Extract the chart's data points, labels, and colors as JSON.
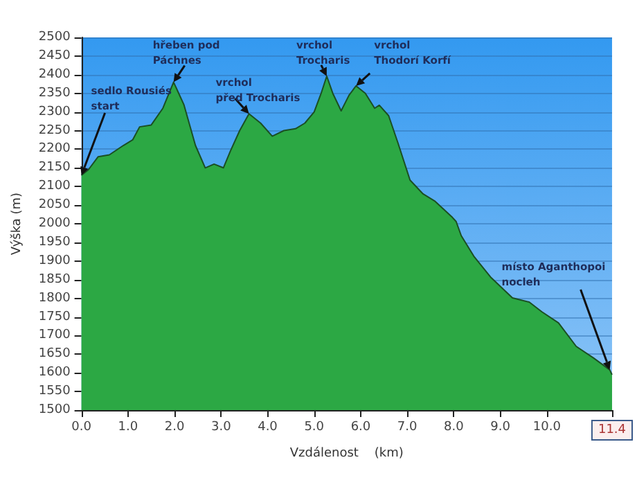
{
  "chart_data": {
    "type": "area",
    "xlabel": "Vzdálenost    (km)",
    "ylabel": "Výška (m)",
    "x": [
      0,
      0.15,
      0.36,
      0.6,
      0.9,
      1.1,
      1.25,
      1.5,
      1.75,
      1.98,
      2.2,
      2.45,
      2.66,
      2.85,
      3.05,
      3.2,
      3.4,
      3.6,
      3.85,
      4.1,
      4.35,
      4.6,
      4.8,
      5.0,
      5.15,
      5.27,
      5.4,
      5.58,
      5.75,
      5.9,
      6.1,
      6.3,
      6.4,
      6.6,
      6.8,
      7.06,
      7.34,
      7.6,
      7.97,
      8.05,
      8.16,
      8.43,
      8.79,
      9.26,
      9.62,
      9.89,
      10.25,
      10.63,
      11.0,
      11.35,
      11.4
    ],
    "series": [
      {
        "color": "#2ca844",
        "values": [
          2130,
          2145,
          2180,
          2185,
          2210,
          2225,
          2260,
          2265,
          2310,
          2380,
          2320,
          2210,
          2150,
          2160,
          2150,
          2195,
          2250,
          2295,
          2270,
          2235,
          2250,
          2255,
          2270,
          2300,
          2350,
          2396,
          2350,
          2303,
          2345,
          2370,
          2350,
          2310,
          2318,
          2290,
          2217,
          2117,
          2080,
          2060,
          2017,
          2006,
          1968,
          1913,
          1857,
          1801,
          1790,
          1764,
          1734,
          1671,
          1640,
          1608,
          1595
        ]
      }
    ],
    "xlim": [
      0,
      11.4
    ],
    "ylim": [
      1500,
      2500
    ],
    "xticks": [
      {
        "value": 0,
        "label": "0.0"
      },
      {
        "value": 1,
        "label": "1.0"
      },
      {
        "value": 2,
        "label": "2.0"
      },
      {
        "value": 3,
        "label": "3.0"
      },
      {
        "value": 4,
        "label": "4.0"
      },
      {
        "value": 5,
        "label": "5.0"
      },
      {
        "value": 6,
        "label": "6.0"
      },
      {
        "value": 7,
        "label": "7.0"
      },
      {
        "value": 8,
        "label": "8.0"
      },
      {
        "value": 9,
        "label": "9.0"
      },
      {
        "value": 10,
        "label": "10.0"
      },
      {
        "value": 11.4,
        "label": "11.4"
      }
    ],
    "yticks": [
      1500,
      1550,
      1600,
      1650,
      1700,
      1750,
      1800,
      1850,
      1900,
      1950,
      2000,
      2050,
      2100,
      2150,
      2200,
      2250,
      2300,
      2350,
      2400,
      2450,
      2500
    ],
    "grid": "y",
    "marker": "none",
    "annotations": [
      {
        "text": "sedlo Rousiés\nstart",
        "x": 0,
        "y": 2130
      },
      {
        "text": "hřeben pod\nPáchnes",
        "x": 1.98,
        "y": 2380
      },
      {
        "text": "vrchol\npřed Trocharis",
        "x": 3.6,
        "y": 2295
      },
      {
        "text": "vrchol\nTrocharis",
        "x": 5.27,
        "y": 2396
      },
      {
        "text": "vrchol\nThodorí Korfí",
        "x": 5.9,
        "y": 2370
      },
      {
        "text": "místo Aganthopoi\nnocleh",
        "x": 11.35,
        "y": 1608
      }
    ]
  }
}
